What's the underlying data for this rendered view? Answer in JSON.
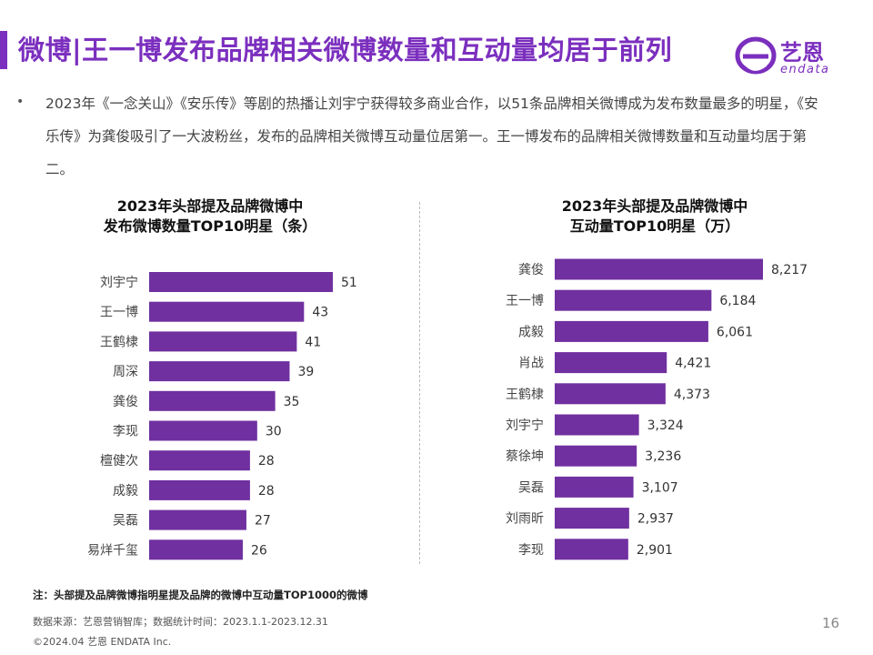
{
  "header": {
    "title": "微博|王一博发布品牌相关微博数量和互动量均居于前列",
    "logo_cn": "艺恩",
    "logo_en": "endata"
  },
  "bullet": {
    "text": "2023年《一念关山》《安乐传》等剧的热播让刘宇宁获得较多商业合作，以51条品牌相关微博成为发布数量最多的明星，《安乐传》为龚俊吸引了一大波粉丝，发布的品牌相关微博互动量位居第一。王一博发布的品牌相关微博数量和互动量均居于第二。"
  },
  "footer": {
    "note": "注：头部提及品牌微博指明星提及品牌的微博中互动量TOP1000的微博",
    "source": "数据来源：艺恩营销智库；数据统计时间：2023.1.1-2023.12.31",
    "copyright": "©2024.04 艺恩 ENDATA Inc.",
    "page_number": "16"
  },
  "colors": {
    "accent": "#7b2fbe",
    "bar": "#7030a0"
  },
  "chart_data": [
    {
      "type": "bar",
      "orientation": "horizontal",
      "title_lines": [
        "2023年头部提及品牌微博中",
        "发布微博数量TOP10明星（条）"
      ],
      "categories": [
        "刘宇宁",
        "王一博",
        "王鹤棣",
        "周深",
        "龚俊",
        "李现",
        "檀健次",
        "成毅",
        "吴磊",
        "易烊千玺"
      ],
      "values": [
        51,
        43,
        41,
        39,
        35,
        30,
        28,
        28,
        27,
        26
      ],
      "value_labels": [
        "51",
        "43",
        "41",
        "39",
        "35",
        "30",
        "28",
        "28",
        "27",
        "26"
      ],
      "xlim": [
        0,
        51
      ],
      "grid": false,
      "legend": "none"
    },
    {
      "type": "bar",
      "orientation": "horizontal",
      "title_lines": [
        "2023年头部提及品牌微博中",
        "互动量TOP10明星（万）"
      ],
      "categories": [
        "龚俊",
        "王一博",
        "成毅",
        "肖战",
        "王鹤棣",
        "刘宇宁",
        "蔡徐坤",
        "吴磊",
        "刘雨昕",
        "李现"
      ],
      "values": [
        8217,
        6184,
        6061,
        4421,
        4373,
        3324,
        3236,
        3107,
        2937,
        2901
      ],
      "value_labels": [
        "8,217",
        "6,184",
        "6,061",
        "4,421",
        "4,373",
        "3,324",
        "3,236",
        "3,107",
        "2,937",
        "2,901"
      ],
      "xlim": [
        0,
        8217
      ],
      "grid": false,
      "legend": "none"
    }
  ]
}
